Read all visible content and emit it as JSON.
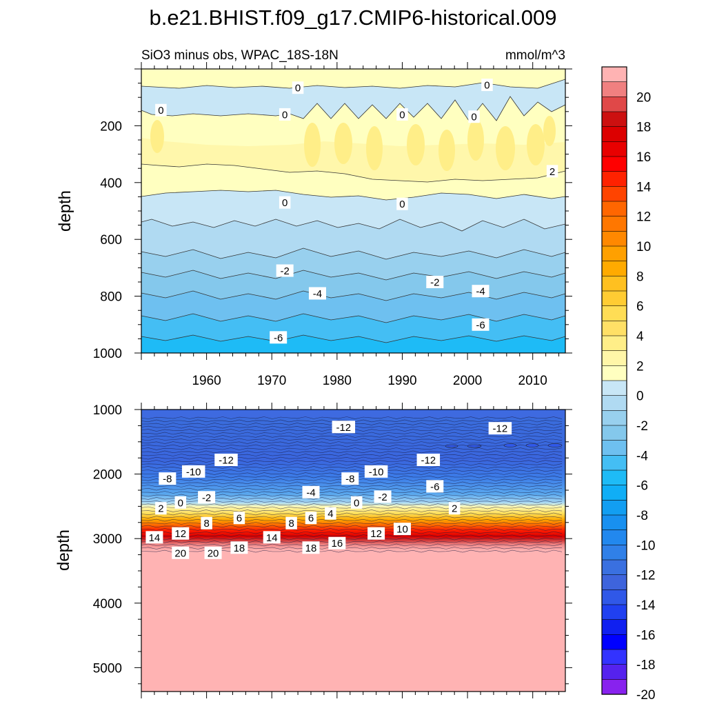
{
  "title": "b.e21.BHIST.f09_g17.CMIP6-historical.009",
  "subtitle_left": "SiO3 minus obs, WPAC_18S-18N",
  "subtitle_right": "mmol/m^3",
  "chart_data": [
    {
      "type": "heatmap",
      "panel": "upper",
      "ylabel": "depth",
      "x_range": [
        1950,
        2015
      ],
      "y_range": [
        0,
        1000
      ],
      "y_inverted": true,
      "x_ticks": [
        1960,
        1970,
        1980,
        1990,
        2000,
        2010
      ],
      "y_ticks": [
        200,
        400,
        600,
        800,
        1000
      ],
      "contour_labels": [
        {
          "text": "0",
          "x": 1974,
          "y": 66
        },
        {
          "text": "0",
          "x": 2003,
          "y": 56
        },
        {
          "text": "0",
          "x": 1953,
          "y": 145
        },
        {
          "text": "0",
          "x": 1972,
          "y": 160
        },
        {
          "text": "0",
          "x": 1990,
          "y": 160
        },
        {
          "text": "0",
          "x": 2001,
          "y": 168
        },
        {
          "text": "2",
          "x": 2013,
          "y": 360
        },
        {
          "text": "0",
          "x": 1972,
          "y": 470
        },
        {
          "text": "0",
          "x": 1990,
          "y": 475
        },
        {
          "text": "-2",
          "x": 1972,
          "y": 710
        },
        {
          "text": "-2",
          "x": 1995,
          "y": 750
        },
        {
          "text": "-4",
          "x": 1977,
          "y": 790
        },
        {
          "text": "-4",
          "x": 2002,
          "y": 782
        },
        {
          "text": "-6",
          "x": 1971,
          "y": 945
        },
        {
          "text": "-6",
          "x": 2002,
          "y": 900
        }
      ]
    },
    {
      "type": "heatmap",
      "panel": "lower",
      "ylabel": "depth",
      "x_range": [
        1950,
        2015
      ],
      "y_range": [
        1000,
        5370
      ],
      "y_inverted": true,
      "y_ticks": [
        1000,
        2000,
        3000,
        4000,
        5000
      ],
      "contour_labels": [
        {
          "text": "-12",
          "x": 1981,
          "y": 1270
        },
        {
          "text": "-12",
          "x": 2005,
          "y": 1290
        },
        {
          "text": "-12",
          "x": 1963,
          "y": 1780
        },
        {
          "text": "-12",
          "x": 1994,
          "y": 1780
        },
        {
          "text": "-10",
          "x": 1958,
          "y": 1960
        },
        {
          "text": "-10",
          "x": 1986,
          "y": 1960
        },
        {
          "text": "-8",
          "x": 1954,
          "y": 2070
        },
        {
          "text": "-8",
          "x": 1982,
          "y": 2070
        },
        {
          "text": "-6",
          "x": 1995,
          "y": 2190
        },
        {
          "text": "-4",
          "x": 1976,
          "y": 2280
        },
        {
          "text": "-2",
          "x": 1960,
          "y": 2360
        },
        {
          "text": "-2",
          "x": 1987,
          "y": 2350
        },
        {
          "text": "0",
          "x": 1956,
          "y": 2440
        },
        {
          "text": "0",
          "x": 1983,
          "y": 2440
        },
        {
          "text": "2",
          "x": 1953,
          "y": 2530
        },
        {
          "text": "2",
          "x": 1998,
          "y": 2530
        },
        {
          "text": "4",
          "x": 1979,
          "y": 2610
        },
        {
          "text": "6",
          "x": 1965,
          "y": 2680
        },
        {
          "text": "6",
          "x": 1976,
          "y": 2680
        },
        {
          "text": "8",
          "x": 1960,
          "y": 2760
        },
        {
          "text": "8",
          "x": 1973,
          "y": 2760
        },
        {
          "text": "10",
          "x": 1990,
          "y": 2850
        },
        {
          "text": "12",
          "x": 1956,
          "y": 2920
        },
        {
          "text": "12",
          "x": 1986,
          "y": 2920
        },
        {
          "text": "14",
          "x": 1952,
          "y": 2980
        },
        {
          "text": "14",
          "x": 1970,
          "y": 2980
        },
        {
          "text": "16",
          "x": 1980,
          "y": 3070
        },
        {
          "text": "18",
          "x": 1965,
          "y": 3140
        },
        {
          "text": "18",
          "x": 1976,
          "y": 3140
        },
        {
          "text": "20",
          "x": 1956,
          "y": 3220
        },
        {
          "text": "20",
          "x": 1961,
          "y": 3220
        }
      ]
    }
  ],
  "colorbar": {
    "labels": [
      "20",
      "18",
      "16",
      "14",
      "12",
      "10",
      "8",
      "6",
      "4",
      "2",
      "0",
      "-2",
      "-4",
      "-6",
      "-8",
      "-10",
      "-12",
      "-14",
      "-16",
      "-18",
      "-20"
    ],
    "colors": [
      "#FFB3B3",
      "#F08080",
      "#E04848",
      "#CC1010",
      "#DC0000",
      "#E80000",
      "#FF0000",
      "#FF2200",
      "#FF4400",
      "#FF6600",
      "#FF7700",
      "#FF8800",
      "#FFA000",
      "#FFAA00",
      "#FFC020",
      "#FFCC33",
      "#FFDD55",
      "#FFE066",
      "#FFEE88",
      "#FFF6A8",
      "#FFFFC0",
      "#C8E6F6",
      "#B0DAF2",
      "#98D0EE",
      "#84C8EC",
      "#6EC0F0",
      "#44BEF4",
      "#1EBBF6",
      "#10AEF6",
      "#129EF2",
      "#1890F0",
      "#2288EE",
      "#3080E8",
      "#3A70E0",
      "#3E64DC",
      "#3058E8",
      "#2040F0",
      "#1020F0",
      "#0000FF",
      "#3333FF",
      "#5522EE",
      "#8822EE"
    ]
  }
}
